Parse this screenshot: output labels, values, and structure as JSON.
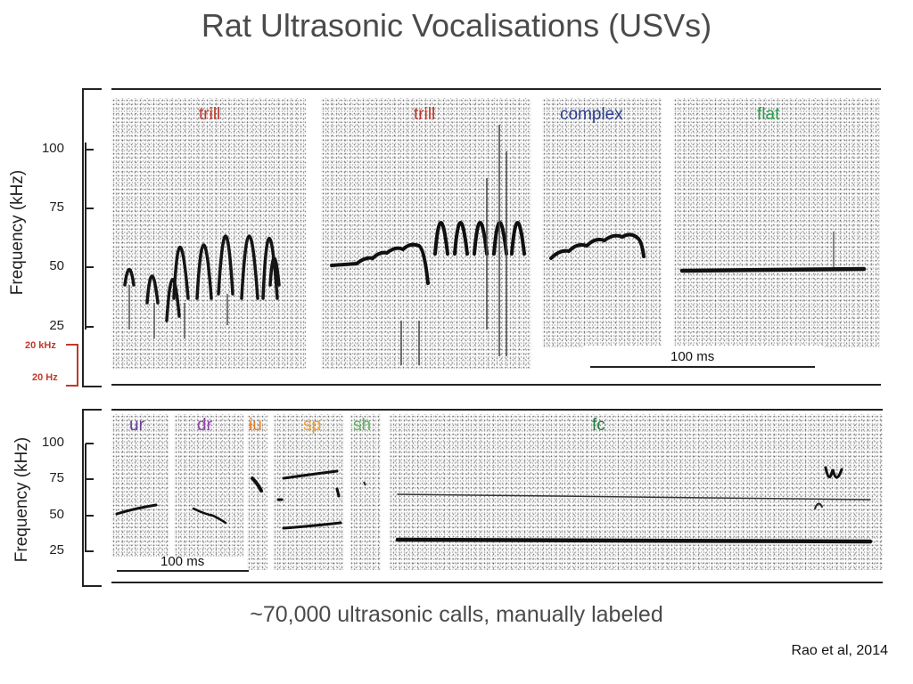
{
  "title": "Rat Ultrasonic Vocalisations (USVs)",
  "caption": "~70,000 ultrasonic calls, manually labeled",
  "citation": "Rao et al, 2014",
  "top_panel": {
    "ylabel": "Frequency (kHz)",
    "ticks": [
      "100",
      "75",
      "50",
      "25"
    ],
    "scale_low": "20 kHz",
    "scale_high": "20 Hz",
    "scalebar": "100 ms",
    "calls": [
      {
        "label": "trill",
        "color": "#c0392b"
      },
      {
        "label": "trill",
        "color": "#c0392b"
      },
      {
        "label": "complex",
        "color": "#2c3e8f"
      },
      {
        "label": "flat",
        "color": "#2e9e4f"
      }
    ]
  },
  "bottom_panel": {
    "ylabel": "Frequency (kHz)",
    "ticks": [
      "100",
      "75",
      "50",
      "25"
    ],
    "scalebar": "100 ms",
    "calls": [
      {
        "label": "ur",
        "color": "#6a3d9a"
      },
      {
        "label": "dr",
        "color": "#8e44ad"
      },
      {
        "label": "iu",
        "color": "#e67e22"
      },
      {
        "label": "sp",
        "color": "#f0a030"
      },
      {
        "label": "sh",
        "color": "#5cb85c"
      },
      {
        "label": "fc",
        "color": "#1e7a3e"
      }
    ]
  }
}
